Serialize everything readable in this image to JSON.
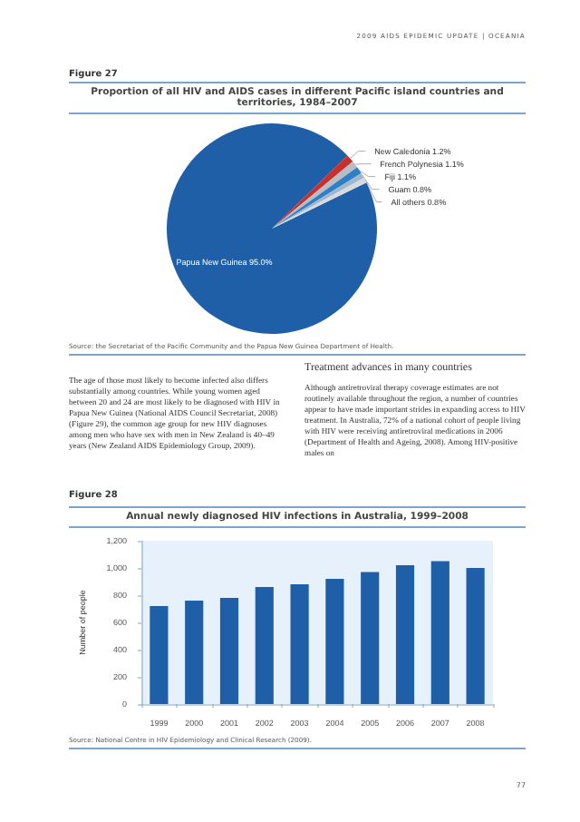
{
  "chart_data": [
    {
      "type": "pie",
      "title": "Proportion of all HIV and AIDS cases in different Pacific island countries and territories, 1984–2007",
      "categories": [
        "Papua New Guinea",
        "New Caledonia",
        "French Polynesia",
        "Fiji",
        "Guam",
        "All others"
      ],
      "values": [
        95.0,
        1.2,
        1.1,
        1.1,
        0.8,
        0.8
      ],
      "value_labels": [
        "95.0%",
        "1.2%",
        "1.1%",
        "1.1%",
        "0.8%",
        "0.8%"
      ],
      "colors": [
        "#1f5fa8",
        "#c8302c",
        "#b8bcc4",
        "#2f7fc6",
        "#9fb6cc",
        "#d6d9de"
      ],
      "legend": false,
      "annotations": [
        "Figure 27",
        "Source: the Secretariat of the Pacific Community and the Papua New Guinea Department of Health."
      ]
    },
    {
      "type": "other",
      "title": "Treatment advances in many countries",
      "annotations": [
        "2009 AIDS EPIDEMIC UPDATE | OCEANIA",
        "The age of those most likely to become infected also differs substantially among countries. While young women aged between 20 and 24 are most likely to be diagnosed with HIV in Papua New Guinea (National AIDS Council Secretariat, 2008) (Figure 29), the common age group for new HIV diagnoses among men who have sex with men in New Zealand is 40–49 years (New Zealand AIDS Epidemiology Group, 2009).",
        "Although antiretroviral therapy coverage estimates are not routinely available throughout the region, a number of countries appear to have made important strides in expanding access to HIV treatment. In Australia, 72% of a national cohort of people living with HIV were receiving antiretroviral medications in 2006 (Department of Health and Ageing, 2008). Among HIV-positive males on",
        "77"
      ]
    },
    {
      "type": "bar",
      "title": "Annual newly diagnosed HIV infections in Australia, 1999–2008",
      "ylabel": "Number of people",
      "categories": [
        "1999",
        "2000",
        "2001",
        "2002",
        "2003",
        "2004",
        "2005",
        "2006",
        "2007",
        "2008"
      ],
      "values": [
        720,
        760,
        780,
        860,
        880,
        920,
        970,
        1020,
        1050,
        1000
      ],
      "color": "#1f5fa8",
      "ylim": [
        0,
        1200
      ],
      "yticks": [
        0,
        200,
        400,
        600,
        800,
        {
          "value": 1000,
          "label": "1,000"
        },
        {
          "value": 1200,
          "label": "1,200"
        }
      ],
      "grid": false,
      "legend": false,
      "annotations": [
        "Figure 28",
        "Source: National Centre in HIV Epidemiology and Clinical Research (2009)."
      ]
    }
  ]
}
